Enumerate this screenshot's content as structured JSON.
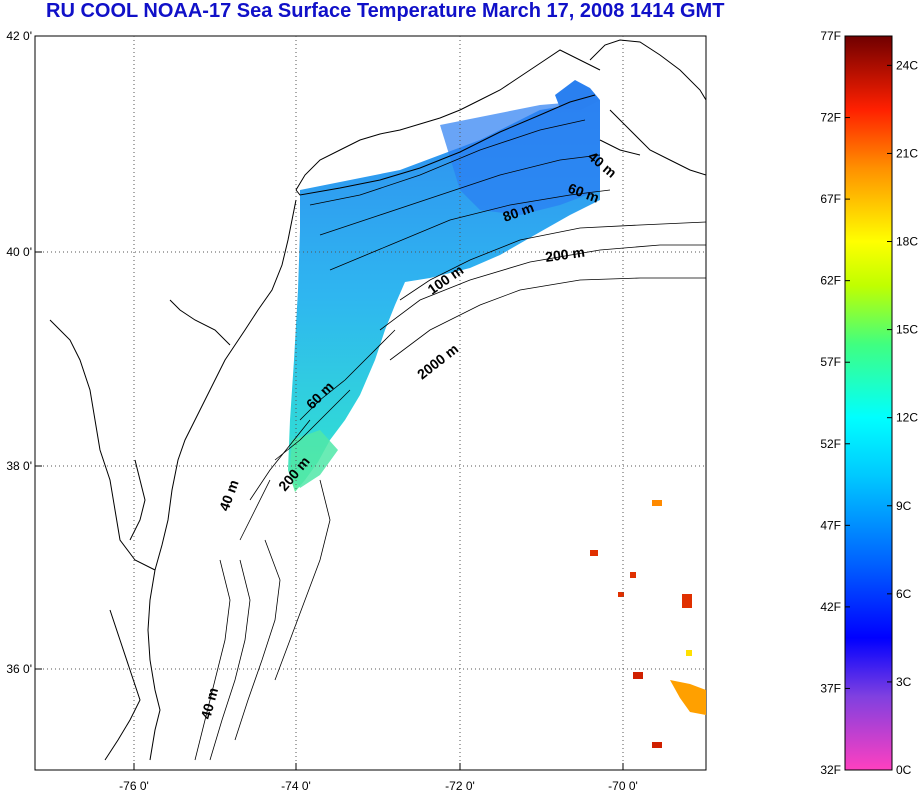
{
  "title": "RU COOL  NOAA-17 Sea Surface Temperature March 17, 2008 1414 GMT",
  "map": {
    "lat_labels": [
      "42 0'",
      "40 0'",
      "38 0'",
      "36 0'"
    ],
    "lon_labels": [
      "-76 0'",
      "-74 0'",
      "-72 0'",
      "-70 0'"
    ],
    "contour_labels": [
      {
        "text": "40 m"
      },
      {
        "text": "60 m"
      },
      {
        "text": "80 m"
      },
      {
        "text": "200 m"
      },
      {
        "text": "100 m"
      },
      {
        "text": "2000 m"
      },
      {
        "text": "60 m"
      },
      {
        "text": "200 m"
      },
      {
        "text": "40 m"
      },
      {
        "text": "40 m"
      }
    ]
  },
  "colorbar": {
    "fahrenheit_ticks": [
      "77F",
      "72F",
      "67F",
      "62F",
      "57F",
      "52F",
      "47F",
      "42F",
      "37F",
      "32F"
    ],
    "celsius_ticks": [
      "24C",
      "21C",
      "18C",
      "15C",
      "12C",
      "9C",
      "6C",
      "3C",
      "0C"
    ],
    "colors": [
      "#ff40c0",
      "#8040e0",
      "#0000ff",
      "#0060ff",
      "#00a0ff",
      "#00ffff",
      "#00ff80",
      "#80ff00",
      "#ffff00",
      "#ffa000",
      "#ff4000",
      "#ff0000",
      "#800000"
    ]
  }
}
